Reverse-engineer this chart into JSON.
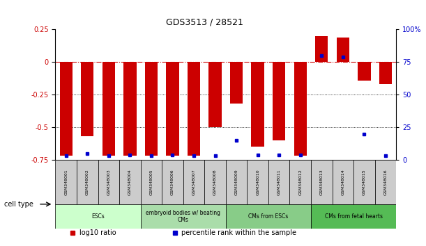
{
  "title": "GDS3513 / 28521",
  "samples": [
    "GSM348001",
    "GSM348002",
    "GSM348003",
    "GSM348004",
    "GSM348005",
    "GSM348006",
    "GSM348007",
    "GSM348008",
    "GSM348009",
    "GSM348010",
    "GSM348011",
    "GSM348012",
    "GSM348013",
    "GSM348014",
    "GSM348015",
    "GSM348016"
  ],
  "log10_ratio": [
    -0.72,
    -0.57,
    -0.72,
    -0.72,
    -0.72,
    -0.72,
    -0.72,
    -0.5,
    -0.32,
    -0.65,
    -0.6,
    -0.72,
    0.2,
    0.19,
    -0.14,
    -0.17
  ],
  "percentile_rank": [
    3,
    5,
    3,
    4,
    3,
    4,
    3,
    3,
    15,
    4,
    4,
    4,
    80,
    79,
    20,
    3
  ],
  "ylim_left": [
    -0.75,
    0.25
  ],
  "ylim_right": [
    0,
    100
  ],
  "yticks_left": [
    -0.75,
    -0.5,
    -0.25,
    0,
    0.25
  ],
  "yticks_right": [
    0,
    25,
    50,
    75,
    100
  ],
  "cell_type_groups": [
    {
      "label": "ESCs",
      "start": 0,
      "end": 4,
      "color": "#ccffcc"
    },
    {
      "label": "embryoid bodies w/ beating\nCMs",
      "start": 4,
      "end": 8,
      "color": "#aaddaa"
    },
    {
      "label": "CMs from ESCs",
      "start": 8,
      "end": 12,
      "color": "#88cc88"
    },
    {
      "label": "CMs from fetal hearts",
      "start": 12,
      "end": 16,
      "color": "#55bb55"
    }
  ],
  "bar_color": "#cc0000",
  "dot_color": "#0000cc",
  "zero_line_color": "#cc0000",
  "grid_color": "#000000",
  "bg_color": "#ffffff",
  "plot_bg": "#ffffff",
  "left_label_color": "#cc0000",
  "right_label_color": "#0000cc",
  "sample_box_color": "#cccccc",
  "cell_type_label": "cell type",
  "legend_items": [
    {
      "color": "#cc0000",
      "label": "log10 ratio"
    },
    {
      "color": "#0000cc",
      "label": "percentile rank within the sample"
    }
  ]
}
